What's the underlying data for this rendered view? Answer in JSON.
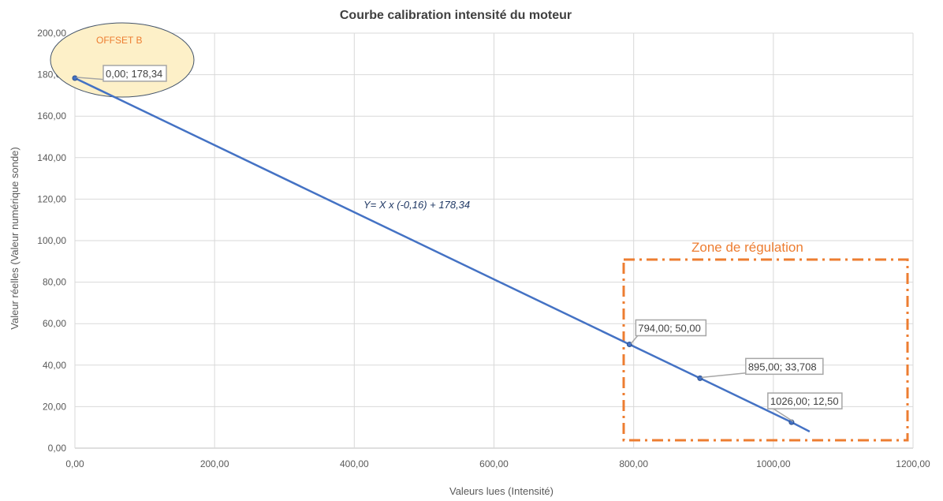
{
  "chart_data": {
    "type": "line",
    "title": "Courbe calibration intensité du moteur",
    "xlabel": "Valeurs lues (Intensité)",
    "ylabel": "Valeur réelles (Valeur numérique sonde)",
    "xlim": [
      0,
      1200
    ],
    "ylim": [
      0,
      200
    ],
    "grid": true,
    "x_ticks": [
      "0,00",
      "200,00",
      "400,00",
      "600,00",
      "800,00",
      "1000,00",
      "1200,00"
    ],
    "y_ticks": [
      "0,00",
      "20,00",
      "40,00",
      "60,00",
      "80,00",
      "100,00",
      "120,00",
      "140,00",
      "160,00",
      "180,00",
      "200,00"
    ],
    "series": [
      {
        "color": "#4472c4",
        "x": [
          0,
          794,
          895,
          1026,
          1052
        ],
        "y": [
          178.34,
          50.0,
          33.708,
          12.5,
          8.0
        ]
      }
    ],
    "markers": [
      {
        "x": 0,
        "y": 178.34,
        "label": "0,00; 178,34"
      },
      {
        "x": 794,
        "y": 50.0,
        "label": "794,00; 50,00"
      },
      {
        "x": 895,
        "y": 33.708,
        "label": "895,00; 33,708"
      },
      {
        "x": 1026,
        "y": 12.5,
        "label": "1026,00; 12,50"
      }
    ],
    "annotations": {
      "equation": "Y= X x (-0,16) + 178,34",
      "zone_label": "Zone de régulation",
      "offset_label": "OFFSET B"
    }
  },
  "colors": {
    "line": "#4472c4",
    "zone": "#ed7d31",
    "offset_fill": "#fdf0c8",
    "offset_stroke": "#44546a",
    "grid": "#d9d9d9"
  }
}
